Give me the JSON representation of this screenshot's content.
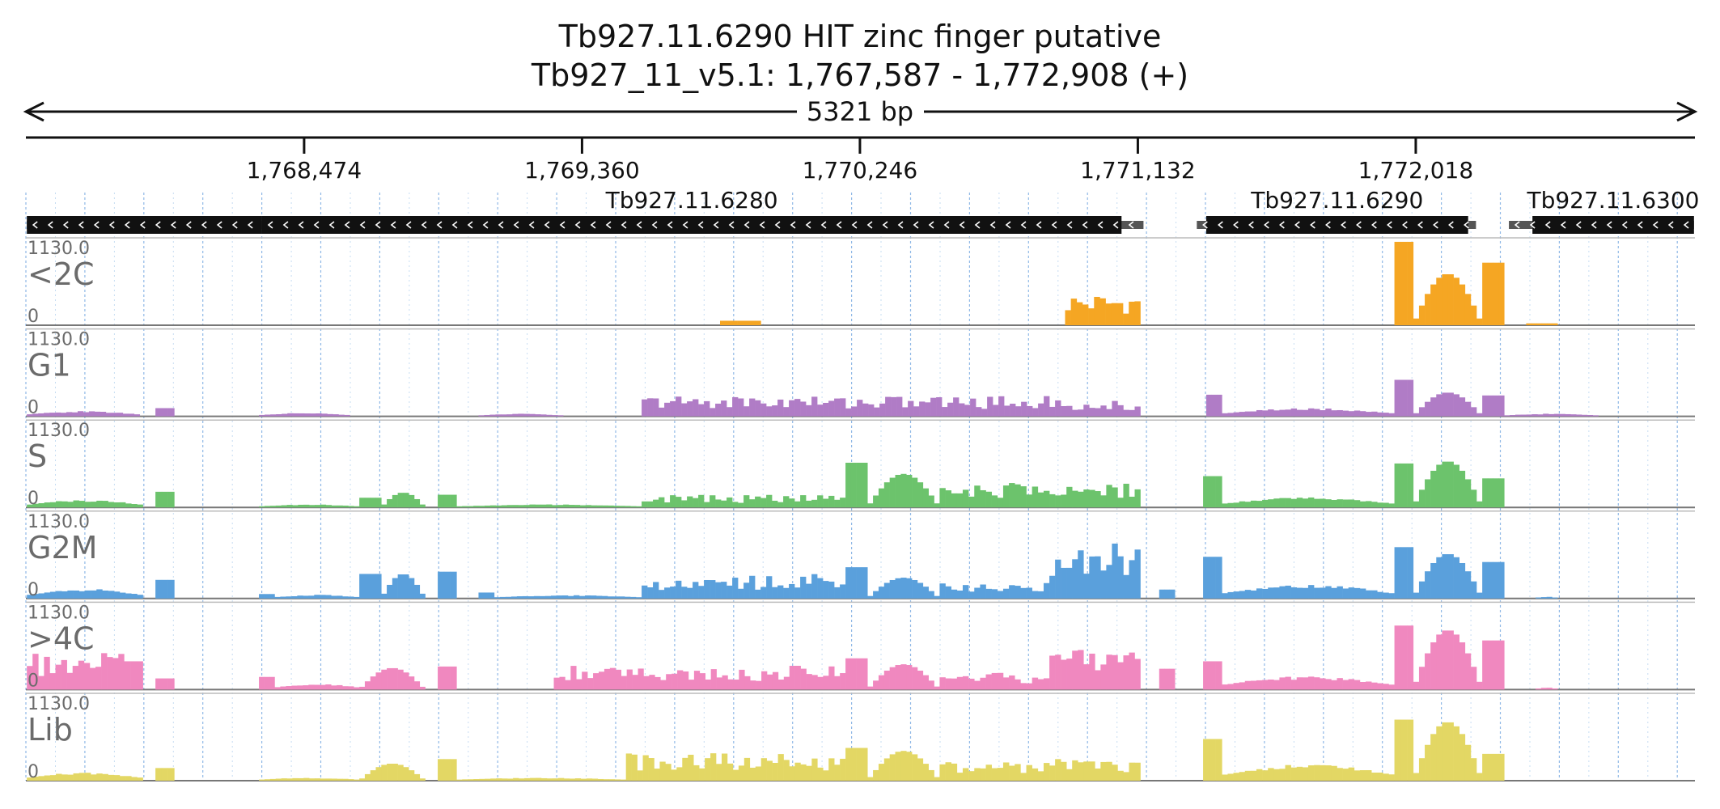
{
  "chart_data": {
    "type": "area",
    "title": "Tb927.11.6290  HIT zinc finger  putative",
    "subtitle": "Tb927_11_v5.1: 1,767,587 - 1,772,908 (+)",
    "span_label": "5321 bp",
    "region": {
      "start": 1767587,
      "end": 1772908
    },
    "ticks": [
      {
        "pos": 1768474,
        "label": "1,768,474"
      },
      {
        "pos": 1769360,
        "label": "1,769,360"
      },
      {
        "pos": 1770246,
        "label": "1,770,246"
      },
      {
        "pos": 1771132,
        "label": "1,771,132"
      },
      {
        "pos": 1772018,
        "label": "1,772,018"
      }
    ],
    "genes": [
      {
        "name": "",
        "start": 1767590,
        "end": 1768340,
        "cds_start": 1767590,
        "cds_end": 1768340,
        "partial": true
      },
      {
        "name": "Tb927.11.6280",
        "start": 1768340,
        "end": 1771150,
        "cds_start": 1768340,
        "cds_end": 1771080
      },
      {
        "name": "Tb927.11.6290",
        "start": 1771320,
        "end": 1772210,
        "cds_start": 1771350,
        "cds_end": 1772185
      },
      {
        "name": "Tb927.11.6300",
        "start": 1772315,
        "end": 1772905,
        "cds_start": 1772390,
        "cds_end": 1772905
      }
    ],
    "ylim": [
      0,
      1130.0
    ],
    "y_max_label": "1130.0",
    "y_min_label": "0",
    "series": [
      {
        "name": "<2C",
        "color": "#f5a623",
        "segments": [
          {
            "start": 1769800,
            "end": 1769930,
            "shape": "flat",
            "peak": 60
          },
          {
            "start": 1770900,
            "end": 1771140,
            "shape": "jagged",
            "peak": 430
          },
          {
            "start": 1771950,
            "end": 1772010,
            "shape": "flat",
            "peak": 1120
          },
          {
            "start": 1772010,
            "end": 1772230,
            "shape": "hump",
            "peak": 690
          },
          {
            "start": 1772230,
            "end": 1772300,
            "shape": "flat",
            "peak": 840
          },
          {
            "start": 1772370,
            "end": 1772470,
            "shape": "flat",
            "peak": 25
          }
        ]
      },
      {
        "name": "G1",
        "color": "#b07cc6",
        "segments": [
          {
            "start": 1767590,
            "end": 1767950,
            "shape": "low",
            "peak": 70
          },
          {
            "start": 1768000,
            "end": 1768060,
            "shape": "flat",
            "peak": 110
          },
          {
            "start": 1768330,
            "end": 1768620,
            "shape": "low",
            "peak": 45
          },
          {
            "start": 1769030,
            "end": 1769300,
            "shape": "low",
            "peak": 35
          },
          {
            "start": 1769550,
            "end": 1770850,
            "shape": "jagged",
            "peak": 280
          },
          {
            "start": 1770850,
            "end": 1771140,
            "shape": "jagged",
            "peak": 230
          },
          {
            "start": 1771350,
            "end": 1771400,
            "shape": "flat",
            "peak": 290
          },
          {
            "start": 1771400,
            "end": 1771950,
            "shape": "low",
            "peak": 110
          },
          {
            "start": 1771950,
            "end": 1772010,
            "shape": "flat",
            "peak": 490
          },
          {
            "start": 1772010,
            "end": 1772230,
            "shape": "hump",
            "peak": 320
          },
          {
            "start": 1772230,
            "end": 1772300,
            "shape": "flat",
            "peak": 280
          },
          {
            "start": 1772300,
            "end": 1772600,
            "shape": "low",
            "peak": 35
          }
        ]
      },
      {
        "name": "S",
        "color": "#6cc36c",
        "segments": [
          {
            "start": 1767590,
            "end": 1767960,
            "shape": "low",
            "peak": 100
          },
          {
            "start": 1768000,
            "end": 1768060,
            "shape": "flat",
            "peak": 210
          },
          {
            "start": 1768330,
            "end": 1768650,
            "shape": "low",
            "peak": 40
          },
          {
            "start": 1768650,
            "end": 1768720,
            "shape": "flat",
            "peak": 130
          },
          {
            "start": 1768720,
            "end": 1768860,
            "shape": "hump",
            "peak": 200
          },
          {
            "start": 1768900,
            "end": 1768960,
            "shape": "flat",
            "peak": 170
          },
          {
            "start": 1768960,
            "end": 1769550,
            "shape": "low",
            "peak": 40
          },
          {
            "start": 1769550,
            "end": 1770200,
            "shape": "jagged",
            "peak": 170
          },
          {
            "start": 1770200,
            "end": 1770270,
            "shape": "flat",
            "peak": 600
          },
          {
            "start": 1770270,
            "end": 1770500,
            "shape": "hump",
            "peak": 450
          },
          {
            "start": 1770500,
            "end": 1770850,
            "shape": "jagged",
            "peak": 330
          },
          {
            "start": 1770850,
            "end": 1771140,
            "shape": "jagged",
            "peak": 320
          },
          {
            "start": 1771340,
            "end": 1771400,
            "shape": "flat",
            "peak": 420
          },
          {
            "start": 1771400,
            "end": 1771950,
            "shape": "low",
            "peak": 140
          },
          {
            "start": 1771950,
            "end": 1772010,
            "shape": "flat",
            "peak": 590
          },
          {
            "start": 1772010,
            "end": 1772230,
            "shape": "hump",
            "peak": 620
          },
          {
            "start": 1772230,
            "end": 1772300,
            "shape": "flat",
            "peak": 390
          }
        ]
      },
      {
        "name": "G2M",
        "color": "#5aa0dc",
        "segments": [
          {
            "start": 1767590,
            "end": 1767960,
            "shape": "low",
            "peak": 130
          },
          {
            "start": 1768000,
            "end": 1768060,
            "shape": "flat",
            "peak": 250
          },
          {
            "start": 1768330,
            "end": 1768380,
            "shape": "flat",
            "peak": 60
          },
          {
            "start": 1768380,
            "end": 1768650,
            "shape": "low",
            "peak": 50
          },
          {
            "start": 1768650,
            "end": 1768720,
            "shape": "flat",
            "peak": 330
          },
          {
            "start": 1768720,
            "end": 1768860,
            "shape": "hump",
            "peak": 330
          },
          {
            "start": 1768900,
            "end": 1768960,
            "shape": "flat",
            "peak": 360
          },
          {
            "start": 1769030,
            "end": 1769080,
            "shape": "flat",
            "peak": 80
          },
          {
            "start": 1769080,
            "end": 1769550,
            "shape": "low",
            "peak": 45
          },
          {
            "start": 1769550,
            "end": 1770200,
            "shape": "jagged",
            "peak": 330
          },
          {
            "start": 1770200,
            "end": 1770270,
            "shape": "flat",
            "peak": 420
          },
          {
            "start": 1770270,
            "end": 1770500,
            "shape": "hump",
            "peak": 280
          },
          {
            "start": 1770500,
            "end": 1770850,
            "shape": "jagged",
            "peak": 220
          },
          {
            "start": 1770850,
            "end": 1771140,
            "shape": "jagged",
            "peak": 740
          },
          {
            "start": 1771200,
            "end": 1771250,
            "shape": "flat",
            "peak": 120
          },
          {
            "start": 1771340,
            "end": 1771400,
            "shape": "flat",
            "peak": 560
          },
          {
            "start": 1771400,
            "end": 1771950,
            "shape": "low",
            "peak": 190
          },
          {
            "start": 1771950,
            "end": 1772010,
            "shape": "flat",
            "peak": 690
          },
          {
            "start": 1772010,
            "end": 1772230,
            "shape": "hump",
            "peak": 600
          },
          {
            "start": 1772230,
            "end": 1772300,
            "shape": "flat",
            "peak": 490
          },
          {
            "start": 1772400,
            "end": 1772470,
            "shape": "low",
            "peak": 25
          }
        ]
      },
      {
        "name": ">4C",
        "color": "#f088bf",
        "segments": [
          {
            "start": 1767590,
            "end": 1767900,
            "shape": "jagged",
            "peak": 490
          },
          {
            "start": 1767900,
            "end": 1767960,
            "shape": "flat",
            "peak": 380
          },
          {
            "start": 1768000,
            "end": 1768060,
            "shape": "flat",
            "peak": 150
          },
          {
            "start": 1768330,
            "end": 1768380,
            "shape": "flat",
            "peak": 170
          },
          {
            "start": 1768380,
            "end": 1768650,
            "shape": "low",
            "peak": 80
          },
          {
            "start": 1768650,
            "end": 1768860,
            "shape": "hump",
            "peak": 290
          },
          {
            "start": 1768900,
            "end": 1768960,
            "shape": "flat",
            "peak": 310
          },
          {
            "start": 1769270,
            "end": 1770200,
            "shape": "jagged",
            "peak": 320
          },
          {
            "start": 1770200,
            "end": 1770270,
            "shape": "flat",
            "peak": 420
          },
          {
            "start": 1770270,
            "end": 1770500,
            "shape": "hump",
            "peak": 340
          },
          {
            "start": 1770500,
            "end": 1770850,
            "shape": "jagged",
            "peak": 230
          },
          {
            "start": 1770850,
            "end": 1771140,
            "shape": "jagged",
            "peak": 560
          },
          {
            "start": 1771200,
            "end": 1771250,
            "shape": "flat",
            "peak": 280
          },
          {
            "start": 1771340,
            "end": 1771400,
            "shape": "flat",
            "peak": 380
          },
          {
            "start": 1771400,
            "end": 1771950,
            "shape": "low",
            "peak": 180
          },
          {
            "start": 1771950,
            "end": 1772010,
            "shape": "flat",
            "peak": 860
          },
          {
            "start": 1772010,
            "end": 1772230,
            "shape": "hump",
            "peak": 800
          },
          {
            "start": 1772230,
            "end": 1772300,
            "shape": "flat",
            "peak": 660
          },
          {
            "start": 1772400,
            "end": 1772470,
            "shape": "low",
            "peak": 30
          }
        ]
      },
      {
        "name": "Lib",
        "color": "#e3d764",
        "segments": [
          {
            "start": 1767590,
            "end": 1767960,
            "shape": "low",
            "peak": 110
          },
          {
            "start": 1768000,
            "end": 1768060,
            "shape": "flat",
            "peak": 170
          },
          {
            "start": 1768330,
            "end": 1768650,
            "shape": "low",
            "peak": 40
          },
          {
            "start": 1768650,
            "end": 1768860,
            "shape": "hump",
            "peak": 230
          },
          {
            "start": 1768900,
            "end": 1768960,
            "shape": "flat",
            "peak": 290
          },
          {
            "start": 1768960,
            "end": 1769500,
            "shape": "low",
            "peak": 40
          },
          {
            "start": 1769500,
            "end": 1770200,
            "shape": "jagged",
            "peak": 380
          },
          {
            "start": 1770200,
            "end": 1770270,
            "shape": "flat",
            "peak": 440
          },
          {
            "start": 1770270,
            "end": 1770500,
            "shape": "hump",
            "peak": 400
          },
          {
            "start": 1770500,
            "end": 1770850,
            "shape": "jagged",
            "peak": 250
          },
          {
            "start": 1770850,
            "end": 1771140,
            "shape": "jagged",
            "peak": 320
          },
          {
            "start": 1771340,
            "end": 1771400,
            "shape": "flat",
            "peak": 560
          },
          {
            "start": 1771400,
            "end": 1771950,
            "shape": "low",
            "peak": 220
          },
          {
            "start": 1771950,
            "end": 1772010,
            "shape": "flat",
            "peak": 820
          },
          {
            "start": 1772010,
            "end": 1772230,
            "shape": "hump",
            "peak": 790
          },
          {
            "start": 1772230,
            "end": 1772300,
            "shape": "flat",
            "peak": 360
          }
        ]
      }
    ]
  }
}
